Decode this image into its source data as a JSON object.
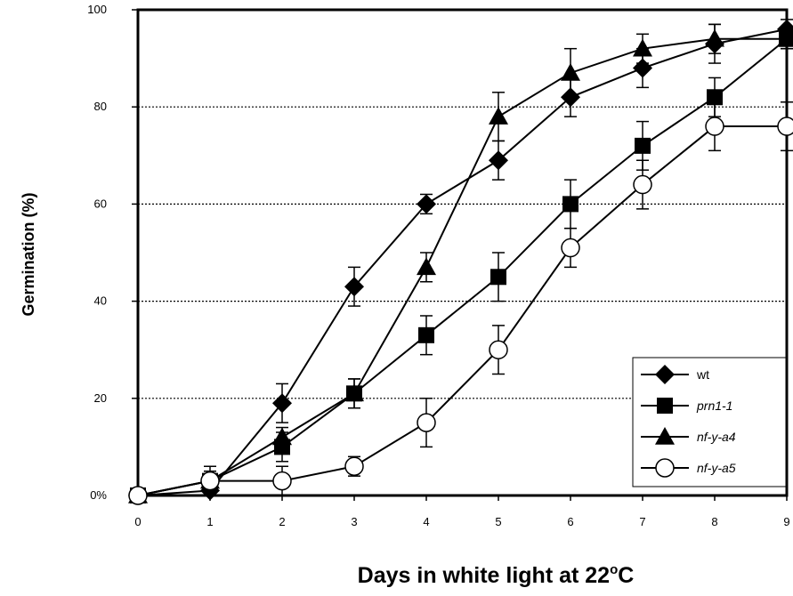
{
  "chart_data": {
    "type": "line",
    "title": "",
    "xlabel": "Days in white light at 22",
    "xlabel_sup": "o",
    "xlabel_suffix": "C",
    "ylabel": "Germination (%)",
    "xlim": [
      0,
      9
    ],
    "ylim": [
      0,
      100
    ],
    "x_ticks": [
      "0",
      "1",
      "2",
      "3",
      "4",
      "5",
      "6",
      "7",
      "8",
      "9"
    ],
    "y_ticks": [
      "0%",
      "20",
      "40",
      "60",
      "80",
      "100"
    ],
    "grid": "horizontal dotted",
    "legend_position": "bottom-right",
    "series": [
      {
        "name": "wt",
        "marker": "diamond",
        "x": [
          0,
          1,
          2,
          3,
          4,
          5,
          6,
          7,
          8,
          9
        ],
        "y": [
          0,
          1,
          19,
          43,
          60,
          69,
          82,
          88,
          93,
          96
        ],
        "err": [
          0,
          1,
          4,
          4,
          2,
          4,
          4,
          4,
          4,
          2
        ]
      },
      {
        "name": "prn1-1",
        "marker": "square",
        "x": [
          0,
          1,
          2,
          3,
          4,
          5,
          6,
          7,
          8,
          9
        ],
        "y": [
          0,
          3,
          10,
          21,
          33,
          45,
          60,
          72,
          82,
          94
        ],
        "err": [
          0,
          3,
          3,
          3,
          4,
          5,
          5,
          5,
          4,
          2
        ]
      },
      {
        "name": "nf-y-a4",
        "marker": "triangle",
        "x": [
          0,
          1,
          2,
          3,
          4,
          5,
          6,
          7,
          8,
          9
        ],
        "y": [
          0,
          3,
          12,
          21,
          47,
          78,
          87,
          92,
          94,
          94
        ],
        "err": [
          0,
          2,
          2,
          3,
          3,
          5,
          5,
          3,
          3,
          2
        ]
      },
      {
        "name": "nf-y-a5",
        "marker": "open-circle",
        "x": [
          0,
          1,
          2,
          3,
          4,
          5,
          6,
          7,
          8,
          9
        ],
        "y": [
          0,
          3,
          3,
          6,
          15,
          30,
          51,
          64,
          76,
          76
        ],
        "err": [
          0,
          2,
          3,
          2,
          5,
          5,
          4,
          5,
          5,
          5
        ]
      }
    ]
  }
}
